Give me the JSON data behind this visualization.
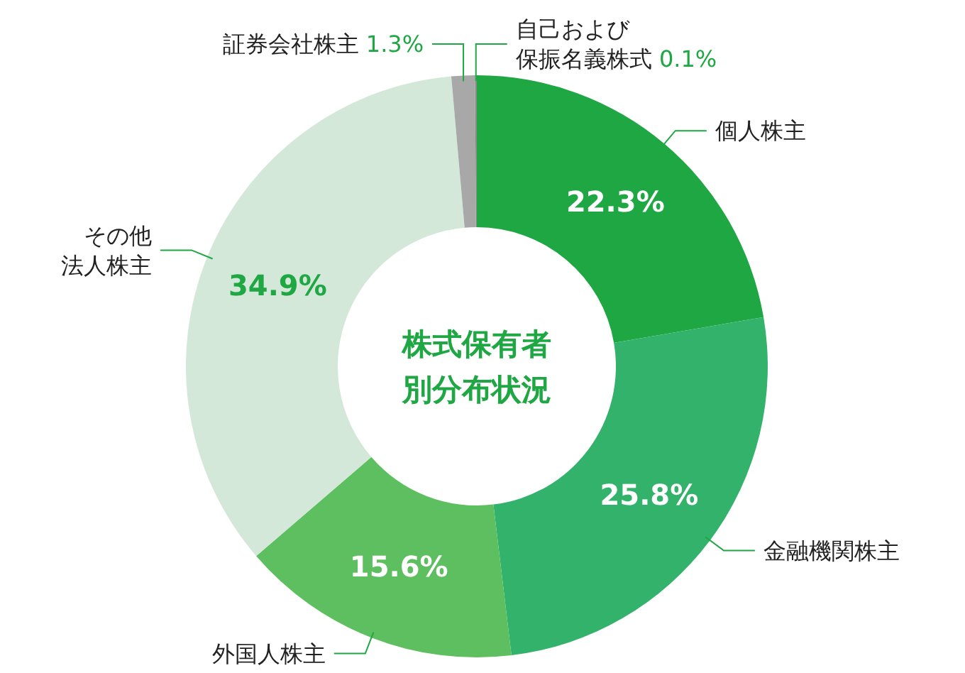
{
  "chart_data": {
    "type": "donut",
    "title": "株式保有者別分布状況",
    "categories": [
      "個人株主",
      "金融機関株主",
      "外国人株主",
      "その他法人株主",
      "証券会社株主",
      "自己および保振名義株式"
    ],
    "values": [
      22.3,
      25.8,
      15.6,
      34.9,
      1.3,
      0.1
    ],
    "colors": [
      "#1fa744",
      "#33b26b",
      "#5dbf5f",
      "#d3e8d9",
      "#a8a8a8",
      "#8a8a8a"
    ],
    "value_labels": [
      "22.3%",
      "25.8%",
      "15.6%",
      "34.9%",
      "1.3%",
      "0.1%"
    ],
    "legend": false
  }
}
